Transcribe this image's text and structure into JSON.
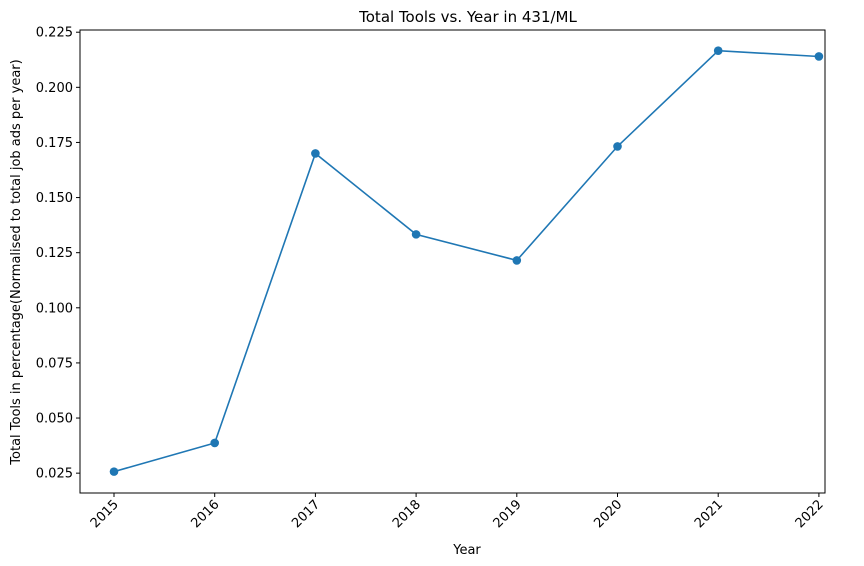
{
  "chart_data": {
    "type": "line",
    "title": "Total Tools vs. Year in 431/ML",
    "xlabel": "Year",
    "ylabel": "Total Tools in percentage(Normalised to total job ads per year)",
    "x": [
      "2015",
      "2016",
      "2017",
      "2018",
      "2019",
      "2020",
      "2021",
      "2022"
    ],
    "series": [
      {
        "values": [
          0.0257,
          0.0387,
          0.17,
          0.1333,
          0.1215,
          0.1732,
          0.2166,
          0.214
        ],
        "color": "#1f77b4",
        "marker": "circle"
      }
    ],
    "ylim": [
      0.016,
      0.226
    ],
    "yticks": [
      "0.025",
      "0.050",
      "0.075",
      "0.100",
      "0.125",
      "0.150",
      "0.175",
      "0.200",
      "0.225"
    ],
    "ytick_values": [
      0.025,
      0.05,
      0.075,
      0.1,
      0.125,
      0.15,
      0.175,
      0.2,
      0.225
    ],
    "grid": false,
    "xtick_rotation": 45
  }
}
